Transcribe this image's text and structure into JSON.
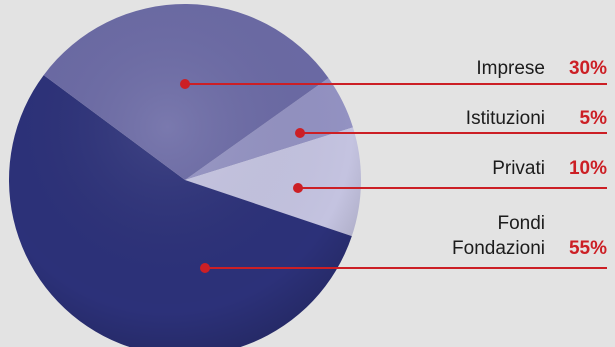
{
  "chart_data": {
    "type": "pie",
    "title": "",
    "slices": [
      {
        "label": "Imprese",
        "value": 30,
        "display": "30%",
        "color": "#6b6aa5"
      },
      {
        "label": "Istituzioni",
        "value": 5,
        "display": "5%",
        "color": "#9392c2"
      },
      {
        "label": "Privati",
        "value": 10,
        "display": "10%",
        "color": "#c4c3e0"
      },
      {
        "label": "Fondi Fondazioni",
        "label_lines": [
          "Fondi",
          "Fondazioni"
        ],
        "value": 55,
        "display": "55%",
        "color": "#2c3179"
      }
    ],
    "leader_line_color": "#cc1f25",
    "value_label_color": "#cc1f25",
    "background": "#e3e3e3"
  }
}
